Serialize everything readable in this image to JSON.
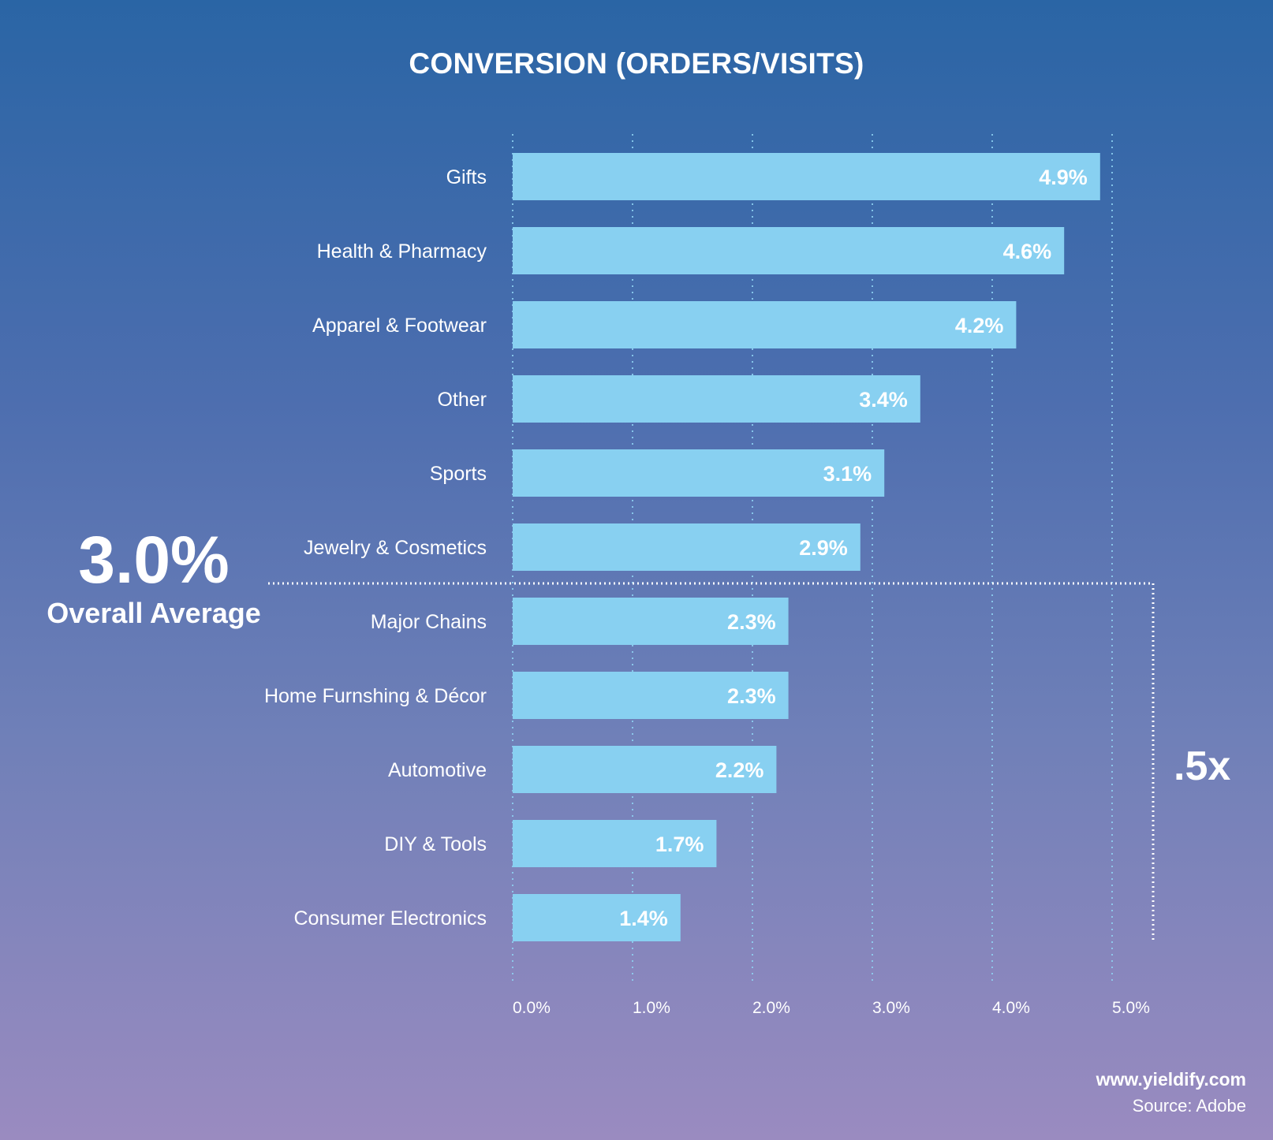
{
  "chart_data": {
    "type": "bar",
    "orientation": "horizontal",
    "title": "CONVERSION (ORDERS/VISITS)",
    "categories": [
      "Gifts",
      "Health & Pharmacy",
      "Apparel & Footwear",
      "Other",
      "Sports",
      "Jewelry & Cosmetics",
      "Major Chains",
      "Home Furnshing & Décor",
      "Automotive",
      "DIY & Tools",
      "Consumer Electronics"
    ],
    "values": [
      4.9,
      4.6,
      4.2,
      3.4,
      3.1,
      2.9,
      2.3,
      2.3,
      2.2,
      1.7,
      1.4
    ],
    "data_labels": [
      "4.9%",
      "4.6%",
      "4.2%",
      "3.4%",
      "3.1%",
      "2.9%",
      "2.3%",
      "2.3%",
      "2.2%",
      "1.7%",
      "1.4%"
    ],
    "xlim": [
      0,
      5
    ],
    "x_ticks": [
      "0.0%",
      "1.0%",
      "2.0%",
      "3.0%",
      "4.0%",
      "5.0%"
    ],
    "grid": "vertical dotted",
    "reference_line": {
      "value": 3.0
    }
  },
  "average": {
    "value": "3.0%",
    "label": "Overall Average"
  },
  "multiplier": ".5x",
  "footer": {
    "site": "www.yieldify.com",
    "source": "Source: Adobe"
  },
  "colors": {
    "bar": "#88d0f1",
    "text": "#ffffff",
    "gridline": "#8fd3f3"
  }
}
